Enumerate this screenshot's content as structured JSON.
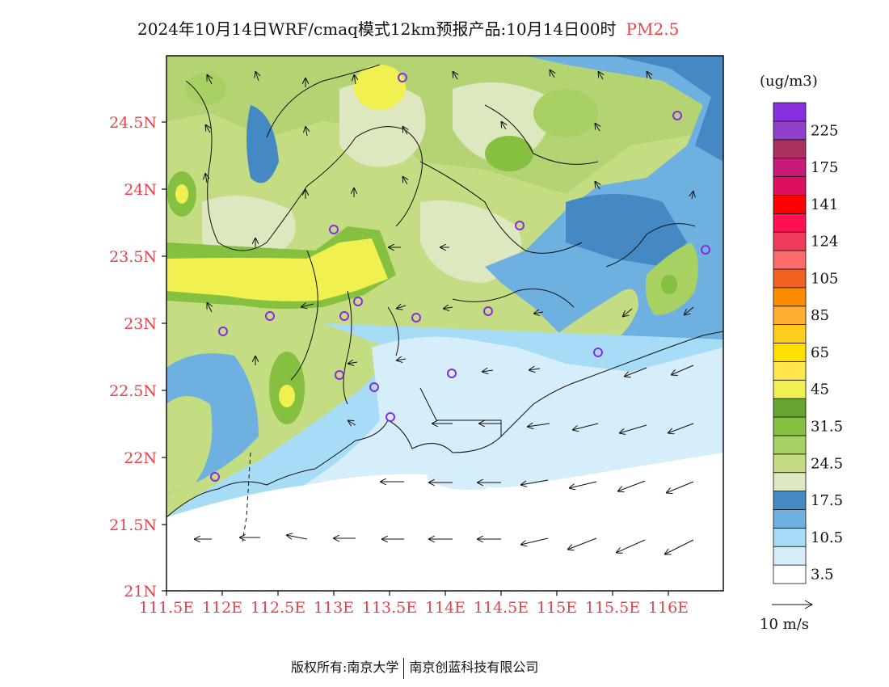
{
  "title": {
    "main": "2024年10月14日WRF/cmaq模式12km预报产品:10月14日00时",
    "species": "PM2.5"
  },
  "axes": {
    "lat_labels": [
      "24.5N",
      "24N",
      "23.5N",
      "23N",
      "22.5N",
      "22N",
      "21.5N",
      "21N"
    ],
    "lon_labels": [
      "111.5E",
      "112E",
      "112.5E",
      "113E",
      "113.5E",
      "114E",
      "114.5E",
      "115E",
      "115.5E",
      "116E"
    ]
  },
  "legend": {
    "unit": "(ug/m3)",
    "bins": [
      {
        "color": "#ffffff",
        "label": "3.5"
      },
      {
        "color": "#d6eefa",
        "label": ""
      },
      {
        "color": "#a6dcf5",
        "label": "10.5"
      },
      {
        "color": "#6eb0e0",
        "label": ""
      },
      {
        "color": "#4488c4",
        "label": "17.5"
      },
      {
        "color": "#dde8c0",
        "label": ""
      },
      {
        "color": "#c4dc82",
        "label": "24.5"
      },
      {
        "color": "#a8d062",
        "label": ""
      },
      {
        "color": "#86c040",
        "label": "31.5"
      },
      {
        "color": "#64a430",
        "label": ""
      },
      {
        "color": "#f0f050",
        "label": "45"
      },
      {
        "color": "#ffe650",
        "label": ""
      },
      {
        "color": "#ffe000",
        "label": "65"
      },
      {
        "color": "#ffcc20",
        "label": ""
      },
      {
        "color": "#ffb030",
        "label": "85"
      },
      {
        "color": "#ff8c00",
        "label": ""
      },
      {
        "color": "#f06020",
        "label": "105"
      },
      {
        "color": "#ff6a6a",
        "label": ""
      },
      {
        "color": "#f03a5a",
        "label": "124"
      },
      {
        "color": "#ff1050",
        "label": ""
      },
      {
        "color": "#ff0000",
        "label": "141"
      },
      {
        "color": "#dd1060",
        "label": ""
      },
      {
        "color": "#c81878",
        "label": "175"
      },
      {
        "color": "#aa3060",
        "label": ""
      },
      {
        "color": "#9040c8",
        "label": "225"
      },
      {
        "color": "#8830e0",
        "label": ""
      }
    ]
  },
  "wind_reference": {
    "label": "10 m/s"
  },
  "copyright": {
    "left": "版权所有:南京大学",
    "right": "南京创蓝科技有限公司"
  }
}
